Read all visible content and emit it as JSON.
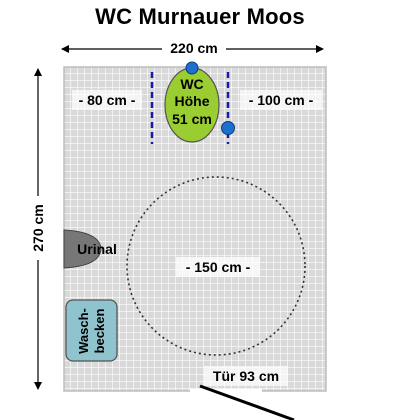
{
  "title": "WC Murnauer Moos",
  "dimensions": {
    "width_label": "220 cm",
    "height_label": "270 cm"
  },
  "wc": {
    "label_line1": "WC",
    "label_line2": "Höhe",
    "label_line3": "51 cm",
    "left_clearance": "- 80 cm -",
    "right_clearance": "- 100 cm -"
  },
  "turning_circle": {
    "label": "- 150 cm -"
  },
  "urinal": {
    "label": "Urinal"
  },
  "sink": {
    "label_line1": "Wasch-",
    "label_line2": "becken"
  },
  "door": {
    "label": "Tür 93 cm"
  },
  "colors": {
    "floor_tile": "#d9d9d9",
    "tile_line": "#ffffff",
    "wall": "#c0c0c0",
    "wc_fill": "#9acd32",
    "urinal_fill": "#777777",
    "sink_fill": "#8fc4cf",
    "grab_bar": "#1a1aa8",
    "marker": "#1f6fd0"
  }
}
